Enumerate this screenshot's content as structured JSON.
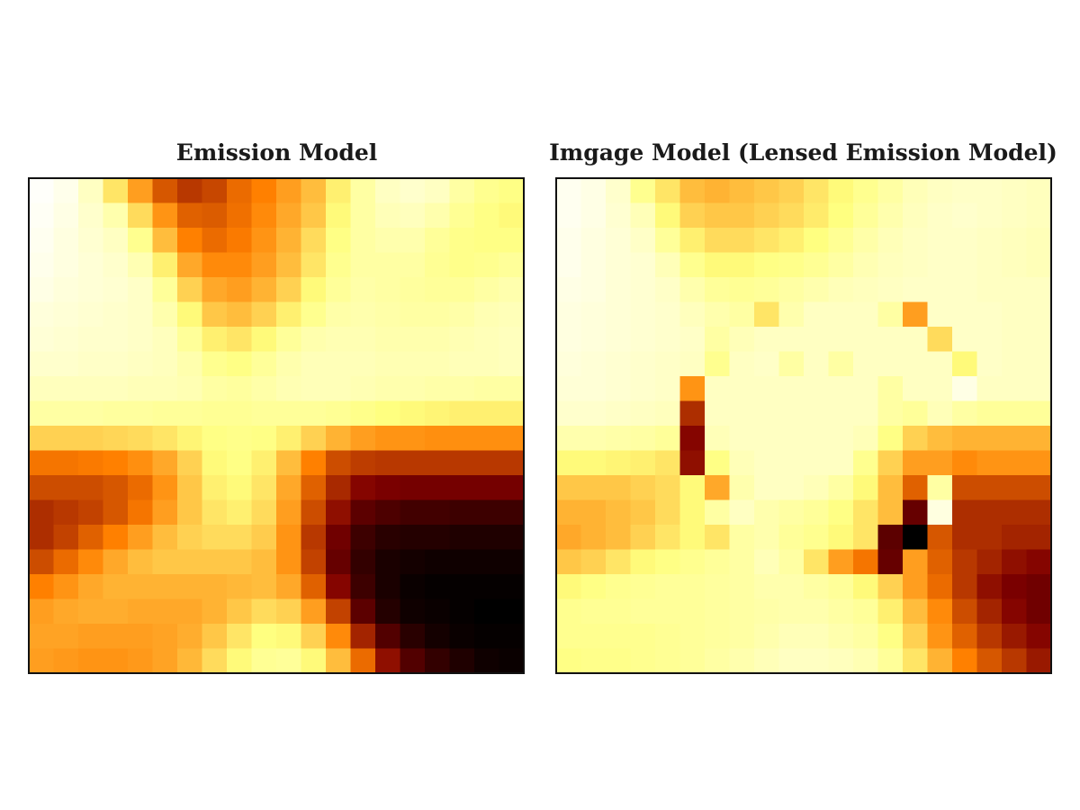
{
  "chart_data": [
    {
      "type": "heatmap",
      "title": "Emission Model",
      "colormap": "afmhot",
      "rows": 20,
      "cols": 20,
      "grid": false,
      "axes_visible": false,
      "values": [
        [
          0.99,
          0.96,
          0.88,
          0.7,
          0.56,
          0.42,
          0.36,
          0.39,
          0.46,
          0.5,
          0.56,
          0.62,
          0.72,
          0.82,
          0.88,
          0.9,
          0.88,
          0.82,
          0.78,
          0.76
        ],
        [
          0.98,
          0.95,
          0.9,
          0.84,
          0.68,
          0.54,
          0.44,
          0.43,
          0.47,
          0.52,
          0.58,
          0.64,
          0.74,
          0.82,
          0.86,
          0.87,
          0.84,
          0.79,
          0.76,
          0.74
        ],
        [
          0.97,
          0.94,
          0.91,
          0.88,
          0.78,
          0.62,
          0.5,
          0.46,
          0.49,
          0.54,
          0.6,
          0.68,
          0.76,
          0.82,
          0.84,
          0.84,
          0.8,
          0.77,
          0.76,
          0.76
        ],
        [
          0.96,
          0.94,
          0.92,
          0.9,
          0.85,
          0.72,
          0.58,
          0.52,
          0.52,
          0.56,
          0.62,
          0.7,
          0.78,
          0.82,
          0.82,
          0.82,
          0.79,
          0.77,
          0.78,
          0.8
        ],
        [
          0.95,
          0.93,
          0.92,
          0.91,
          0.89,
          0.8,
          0.66,
          0.58,
          0.56,
          0.6,
          0.66,
          0.74,
          0.8,
          0.83,
          0.82,
          0.81,
          0.8,
          0.8,
          0.82,
          0.84
        ],
        [
          0.93,
          0.92,
          0.91,
          0.9,
          0.89,
          0.84,
          0.74,
          0.64,
          0.62,
          0.66,
          0.72,
          0.78,
          0.83,
          0.84,
          0.83,
          0.82,
          0.82,
          0.83,
          0.85,
          0.86
        ],
        [
          0.92,
          0.91,
          0.9,
          0.9,
          0.89,
          0.87,
          0.8,
          0.72,
          0.7,
          0.74,
          0.8,
          0.84,
          0.85,
          0.85,
          0.84,
          0.84,
          0.84,
          0.85,
          0.86,
          0.87
        ],
        [
          0.9,
          0.9,
          0.89,
          0.89,
          0.88,
          0.87,
          0.84,
          0.78,
          0.76,
          0.8,
          0.84,
          0.86,
          0.86,
          0.86,
          0.85,
          0.85,
          0.85,
          0.86,
          0.86,
          0.87
        ],
        [
          0.87,
          0.87,
          0.87,
          0.87,
          0.86,
          0.86,
          0.85,
          0.82,
          0.81,
          0.83,
          0.85,
          0.86,
          0.86,
          0.85,
          0.84,
          0.84,
          0.83,
          0.83,
          0.82,
          0.82
        ],
        [
          0.82,
          0.82,
          0.82,
          0.81,
          0.81,
          0.8,
          0.8,
          0.79,
          0.79,
          0.8,
          0.8,
          0.8,
          0.79,
          0.77,
          0.75,
          0.74,
          0.73,
          0.72,
          0.72,
          0.72
        ],
        [
          0.66,
          0.66,
          0.66,
          0.67,
          0.68,
          0.7,
          0.73,
          0.76,
          0.77,
          0.76,
          0.72,
          0.66,
          0.6,
          0.56,
          0.54,
          0.54,
          0.53,
          0.53,
          0.53,
          0.53
        ],
        [
          0.48,
          0.48,
          0.49,
          0.5,
          0.53,
          0.58,
          0.66,
          0.74,
          0.76,
          0.72,
          0.62,
          0.5,
          0.4,
          0.37,
          0.36,
          0.36,
          0.36,
          0.36,
          0.36,
          0.36
        ],
        [
          0.4,
          0.4,
          0.4,
          0.42,
          0.46,
          0.54,
          0.64,
          0.72,
          0.74,
          0.7,
          0.58,
          0.44,
          0.33,
          0.26,
          0.24,
          0.23,
          0.23,
          0.23,
          0.23,
          0.23
        ],
        [
          0.34,
          0.36,
          0.38,
          0.42,
          0.48,
          0.56,
          0.64,
          0.7,
          0.72,
          0.68,
          0.56,
          0.4,
          0.28,
          0.18,
          0.15,
          0.13,
          0.13,
          0.12,
          0.12,
          0.12
        ],
        [
          0.34,
          0.38,
          0.44,
          0.5,
          0.56,
          0.62,
          0.66,
          0.68,
          0.68,
          0.65,
          0.54,
          0.36,
          0.22,
          0.12,
          0.08,
          0.07,
          0.07,
          0.06,
          0.06,
          0.06
        ],
        [
          0.4,
          0.46,
          0.52,
          0.58,
          0.62,
          0.64,
          0.64,
          0.64,
          0.64,
          0.62,
          0.54,
          0.38,
          0.2,
          0.1,
          0.05,
          0.04,
          0.03,
          0.03,
          0.03,
          0.03
        ],
        [
          0.5,
          0.54,
          0.58,
          0.6,
          0.6,
          0.6,
          0.6,
          0.6,
          0.61,
          0.62,
          0.58,
          0.44,
          0.26,
          0.12,
          0.05,
          0.02,
          0.01,
          0.01,
          0.01,
          0.01
        ],
        [
          0.56,
          0.58,
          0.59,
          0.59,
          0.58,
          0.58,
          0.58,
          0.6,
          0.64,
          0.68,
          0.66,
          0.56,
          0.38,
          0.18,
          0.07,
          0.03,
          0.02,
          0.01,
          0.0,
          0.0
        ],
        [
          0.57,
          0.57,
          0.56,
          0.56,
          0.56,
          0.57,
          0.59,
          0.64,
          0.7,
          0.75,
          0.74,
          0.66,
          0.52,
          0.32,
          0.16,
          0.08,
          0.04,
          0.02,
          0.01,
          0.01
        ],
        [
          0.56,
          0.55,
          0.54,
          0.54,
          0.55,
          0.57,
          0.61,
          0.68,
          0.74,
          0.79,
          0.8,
          0.74,
          0.62,
          0.46,
          0.28,
          0.16,
          0.1,
          0.06,
          0.03,
          0.02
        ]
      ]
    },
    {
      "type": "heatmap",
      "title": "Imgage Model (Lensed Emission Model)",
      "colormap": "afmhot",
      "rows": 20,
      "cols": 20,
      "grid": false,
      "axes_visible": false,
      "values": [
        [
          0.97,
          0.95,
          0.9,
          0.78,
          0.7,
          0.62,
          0.6,
          0.62,
          0.64,
          0.66,
          0.7,
          0.74,
          0.78,
          0.82,
          0.86,
          0.88,
          0.89,
          0.89,
          0.88,
          0.87
        ],
        [
          0.97,
          0.95,
          0.91,
          0.86,
          0.74,
          0.66,
          0.64,
          0.64,
          0.66,
          0.68,
          0.71,
          0.75,
          0.8,
          0.84,
          0.87,
          0.89,
          0.9,
          0.89,
          0.88,
          0.87
        ],
        [
          0.96,
          0.94,
          0.92,
          0.89,
          0.8,
          0.72,
          0.68,
          0.68,
          0.7,
          0.72,
          0.75,
          0.79,
          0.83,
          0.86,
          0.88,
          0.89,
          0.89,
          0.88,
          0.87,
          0.86
        ],
        [
          0.96,
          0.94,
          0.92,
          0.91,
          0.86,
          0.78,
          0.74,
          0.74,
          0.76,
          0.77,
          0.79,
          0.82,
          0.85,
          0.87,
          0.88,
          0.89,
          0.89,
          0.88,
          0.87,
          0.86
        ],
        [
          0.95,
          0.94,
          0.92,
          0.91,
          0.89,
          0.84,
          0.8,
          0.79,
          0.8,
          0.82,
          0.84,
          0.86,
          0.87,
          0.88,
          0.89,
          0.89,
          0.89,
          0.88,
          0.88,
          0.88
        ],
        [
          0.94,
          0.93,
          0.92,
          0.91,
          0.9,
          0.87,
          0.84,
          0.82,
          0.7,
          0.84,
          0.88,
          0.88,
          0.88,
          0.82,
          0.56,
          0.89,
          0.89,
          0.89,
          0.88,
          0.88
        ],
        [
          0.94,
          0.93,
          0.92,
          0.91,
          0.9,
          0.89,
          0.82,
          0.86,
          0.88,
          0.88,
          0.88,
          0.88,
          0.88,
          0.88,
          0.88,
          0.68,
          0.89,
          0.89,
          0.88,
          0.88
        ],
        [
          0.93,
          0.92,
          0.91,
          0.9,
          0.89,
          0.88,
          0.78,
          0.88,
          0.89,
          0.82,
          0.88,
          0.82,
          0.88,
          0.88,
          0.88,
          0.88,
          0.74,
          0.89,
          0.88,
          0.88
        ],
        [
          0.92,
          0.92,
          0.91,
          0.9,
          0.89,
          0.54,
          0.88,
          0.88,
          0.88,
          0.88,
          0.88,
          0.88,
          0.88,
          0.82,
          0.88,
          0.88,
          0.95,
          0.88,
          0.88,
          0.88
        ],
        [
          0.9,
          0.9,
          0.89,
          0.88,
          0.87,
          0.34,
          0.88,
          0.88,
          0.88,
          0.88,
          0.88,
          0.88,
          0.88,
          0.82,
          0.8,
          0.86,
          0.82,
          0.8,
          0.8,
          0.8
        ],
        [
          0.84,
          0.84,
          0.83,
          0.82,
          0.8,
          0.26,
          0.86,
          0.88,
          0.88,
          0.88,
          0.88,
          0.88,
          0.86,
          0.76,
          0.66,
          0.62,
          0.6,
          0.6,
          0.6,
          0.6
        ],
        [
          0.74,
          0.74,
          0.73,
          0.72,
          0.7,
          0.28,
          0.76,
          0.86,
          0.88,
          0.88,
          0.88,
          0.88,
          0.78,
          0.66,
          0.56,
          0.56,
          0.52,
          0.54,
          0.54,
          0.54
        ],
        [
          0.64,
          0.64,
          0.64,
          0.66,
          0.68,
          0.74,
          0.58,
          0.84,
          0.88,
          0.88,
          0.86,
          0.82,
          0.74,
          0.62,
          0.44,
          0.82,
          0.4,
          0.4,
          0.4,
          0.4
        ],
        [
          0.6,
          0.6,
          0.62,
          0.64,
          0.68,
          0.74,
          0.82,
          0.88,
          0.84,
          0.82,
          0.8,
          0.76,
          0.7,
          0.62,
          0.2,
          0.94,
          0.34,
          0.34,
          0.34,
          0.34
        ],
        [
          0.58,
          0.6,
          0.62,
          0.66,
          0.7,
          0.74,
          0.7,
          0.82,
          0.84,
          0.8,
          0.78,
          0.74,
          0.7,
          0.18,
          0.0,
          0.42,
          0.34,
          0.34,
          0.32,
          0.32
        ],
        [
          0.64,
          0.66,
          0.7,
          0.74,
          0.76,
          0.78,
          0.8,
          0.82,
          0.86,
          0.82,
          0.7,
          0.56,
          0.48,
          0.2,
          0.56,
          0.44,
          0.36,
          0.32,
          0.28,
          0.26
        ],
        [
          0.74,
          0.76,
          0.78,
          0.79,
          0.8,
          0.8,
          0.81,
          0.82,
          0.84,
          0.84,
          0.82,
          0.8,
          0.74,
          0.66,
          0.56,
          0.46,
          0.36,
          0.28,
          0.24,
          0.22
        ],
        [
          0.78,
          0.79,
          0.79,
          0.8,
          0.8,
          0.8,
          0.81,
          0.82,
          0.83,
          0.84,
          0.84,
          0.82,
          0.8,
          0.72,
          0.62,
          0.52,
          0.4,
          0.32,
          0.26,
          0.22
        ],
        [
          0.78,
          0.78,
          0.78,
          0.78,
          0.79,
          0.8,
          0.81,
          0.82,
          0.84,
          0.86,
          0.86,
          0.84,
          0.82,
          0.76,
          0.66,
          0.54,
          0.44,
          0.36,
          0.3,
          0.26
        ],
        [
          0.76,
          0.77,
          0.77,
          0.78,
          0.79,
          0.8,
          0.82,
          0.84,
          0.86,
          0.88,
          0.88,
          0.87,
          0.85,
          0.8,
          0.7,
          0.6,
          0.5,
          0.42,
          0.36,
          0.3
        ]
      ]
    }
  ]
}
